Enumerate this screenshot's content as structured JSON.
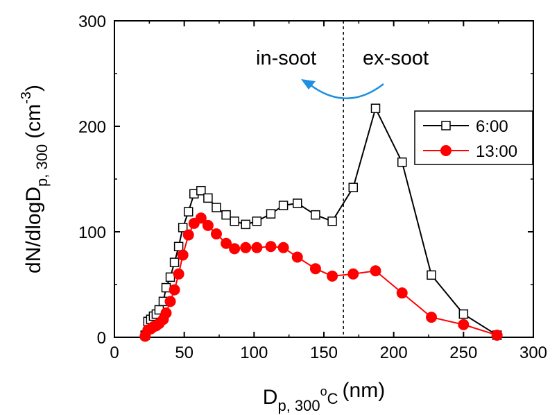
{
  "chart_data": {
    "type": "line",
    "xlabel": {
      "main": "D",
      "sub": "p, 300",
      "sup": "o",
      "rest": "C",
      "unit": "(nm)"
    },
    "ylabel": {
      "main": "dN/dlogD",
      "sub": "p, 300",
      "unit_open": "(cm",
      "sup": "-3",
      "unit_close": ")"
    },
    "xlim": [
      0,
      300
    ],
    "ylim": [
      0,
      300
    ],
    "xticks": [
      0,
      50,
      100,
      150,
      200,
      250,
      300
    ],
    "yticks": [
      0,
      100,
      200,
      300
    ],
    "vline_x": 164,
    "annotations": {
      "left": "in-soot",
      "right": "ex-soot",
      "color": "#1E8FE1"
    },
    "series": [
      {
        "name": "6:00",
        "color": "#000000",
        "marker": "open-square",
        "x": [
          22,
          24,
          26,
          28,
          30,
          32,
          35,
          37,
          40,
          43,
          46,
          49,
          53,
          57,
          62,
          67,
          73,
          80,
          86,
          94,
          102,
          112,
          121,
          131,
          144,
          156,
          171,
          187,
          206,
          227,
          250,
          274
        ],
        "y": [
          2,
          15,
          17,
          20,
          22,
          26,
          34,
          47,
          57,
          71,
          86,
          104,
          119,
          136,
          139,
          132,
          123,
          116,
          110,
          107,
          110,
          117,
          125,
          127,
          116,
          110,
          142,
          217,
          166,
          59,
          22,
          2
        ]
      },
      {
        "name": "13:00",
        "color": "#FF0000",
        "marker": "filled-circle",
        "x": [
          22,
          24,
          26,
          28,
          30,
          32,
          35,
          37,
          40,
          43,
          46,
          49,
          53,
          57,
          62,
          67,
          73,
          80,
          86,
          94,
          102,
          112,
          121,
          131,
          144,
          156,
          171,
          187,
          206,
          227,
          250,
          274
        ],
        "y": [
          1,
          7,
          8,
          10,
          11,
          13,
          17,
          23,
          34,
          45,
          60,
          78,
          97,
          108,
          113,
          106,
          98,
          89,
          84,
          85,
          85,
          86,
          85,
          76,
          65,
          58,
          60,
          63,
          42,
          19,
          12,
          2
        ]
      }
    ]
  }
}
